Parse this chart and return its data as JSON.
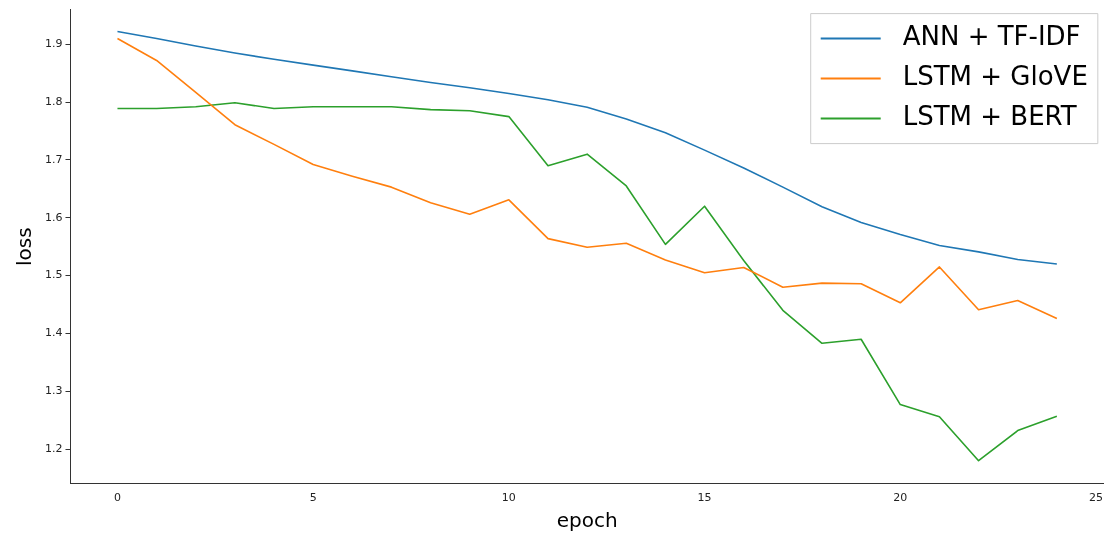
{
  "chart_data": {
    "type": "line",
    "xlabel": "epoch",
    "ylabel": "loss",
    "x": [
      0,
      1,
      2,
      3,
      4,
      5,
      6,
      7,
      8,
      9,
      10,
      11,
      12,
      13,
      14,
      15,
      16,
      17,
      18,
      19,
      20,
      21,
      22,
      23,
      24
    ],
    "series": [
      {
        "name": "ANN + TF-IDF",
        "color": "#1f77b4",
        "values": [
          1.922,
          1.91,
          1.897,
          1.885,
          1.874,
          1.864,
          1.854,
          1.844,
          1.834,
          1.825,
          1.815,
          1.804,
          1.791,
          1.771,
          1.747,
          1.717,
          1.686,
          1.653,
          1.619,
          1.592,
          1.571,
          1.552,
          1.541,
          1.528,
          1.52
        ]
      },
      {
        "name": "LSTM + GloVE",
        "color": "#ff7f0e",
        "values": [
          1.91,
          1.872,
          1.817,
          1.761,
          1.727,
          1.692,
          1.672,
          1.653,
          1.626,
          1.606,
          1.631,
          1.564,
          1.549,
          1.556,
          1.527,
          1.505,
          1.514,
          1.48,
          1.487,
          1.486,
          1.453,
          1.515,
          1.441,
          1.457,
          1.426
        ]
      },
      {
        "name": "LSTM + BERT",
        "color": "#2ca02c",
        "values": [
          1.789,
          1.789,
          1.792,
          1.799,
          1.789,
          1.792,
          1.792,
          1.792,
          1.787,
          1.785,
          1.775,
          1.69,
          1.71,
          1.655,
          1.554,
          1.62,
          1.526,
          1.44,
          1.383,
          1.39,
          1.277,
          1.256,
          1.18,
          1.232,
          1.257
        ]
      }
    ],
    "xlim": [
      -1.2,
      25.2
    ],
    "xticks": [
      0,
      5,
      10,
      15,
      20,
      25
    ],
    "ylim": [
      1.14,
      1.96
    ],
    "yticks": [
      1.2,
      1.3,
      1.4,
      1.5,
      1.6,
      1.7,
      1.8,
      1.9
    ],
    "grid": false,
    "legend": "top right",
    "marker": "none",
    "line_style": "solid"
  }
}
